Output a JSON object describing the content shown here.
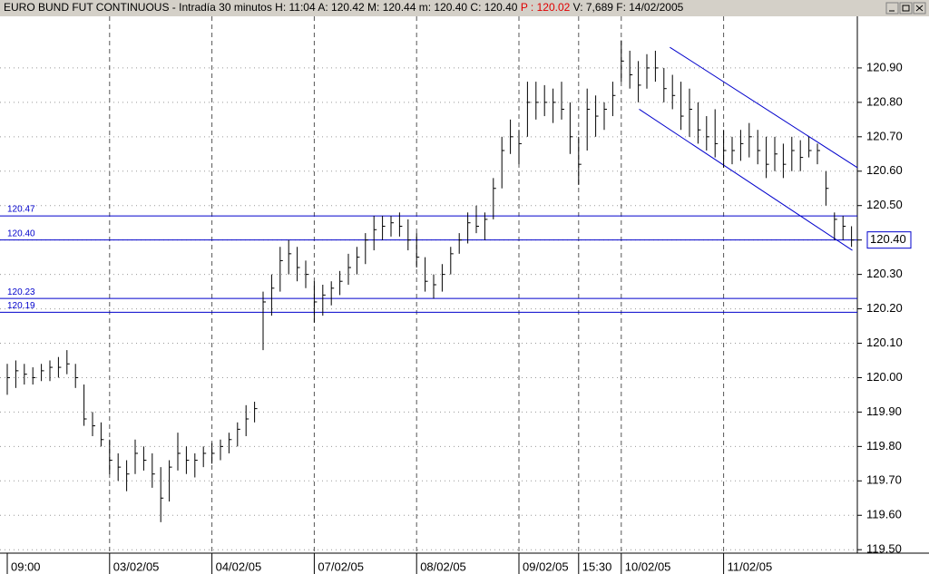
{
  "header": {
    "parts": [
      "EURO BUND FUT CONTINUOUS - Intradía 30 minutos  H: 11:04  A: 120.42  M: 120.44  m: 120.40  C: 120.40",
      "P : 120.02",
      "V: 7,689  F: 14/02/2005"
    ]
  },
  "chart_data": {
    "type": "ohlc",
    "categories": [
      "09:00",
      null,
      null,
      null,
      null,
      null,
      null,
      null,
      null,
      null,
      null,
      null,
      "03/02/05",
      null,
      null,
      null,
      null,
      null,
      null,
      null,
      null,
      null,
      null,
      null,
      "04/02/05",
      null,
      null,
      null,
      null,
      null,
      null,
      null,
      null,
      null,
      null,
      null,
      "07/02/05",
      null,
      null,
      null,
      null,
      null,
      null,
      null,
      null,
      null,
      null,
      null,
      "08/02/05",
      null,
      null,
      null,
      null,
      null,
      null,
      null,
      null,
      null,
      null,
      null,
      "09/02/05",
      null,
      null,
      null,
      null,
      null,
      null,
      "15:30",
      null,
      null,
      null,
      null,
      "10/02/05",
      null,
      null,
      null,
      null,
      null,
      null,
      null,
      null,
      null,
      null,
      null,
      "11/02/05",
      null,
      null,
      null,
      null,
      null,
      null,
      null,
      null,
      null,
      null,
      null,
      null,
      null,
      null,
      null
    ],
    "high": [
      120.04,
      120.05,
      120.04,
      120.03,
      120.04,
      120.05,
      120.06,
      120.08,
      120.04,
      119.98,
      119.9,
      119.87,
      119.82,
      119.78,
      119.76,
      119.82,
      119.8,
      119.78,
      119.74,
      119.76,
      119.84,
      119.8,
      119.78,
      119.8,
      119.81,
      119.82,
      119.84,
      119.87,
      119.92,
      119.93,
      120.25,
      120.3,
      120.38,
      120.4,
      120.38,
      120.34,
      120.28,
      120.27,
      120.28,
      120.31,
      120.36,
      120.38,
      120.42,
      120.47,
      120.47,
      120.47,
      120.48,
      120.46,
      120.42,
      120.35,
      120.3,
      120.33,
      120.38,
      120.42,
      120.48,
      120.5,
      120.48,
      120.58,
      120.7,
      120.75,
      120.72,
      120.86,
      120.86,
      120.85,
      120.84,
      120.86,
      120.8,
      120.7,
      120.84,
      120.82,
      120.8,
      120.86,
      120.98,
      120.95,
      120.92,
      120.94,
      120.95,
      120.9,
      120.88,
      120.86,
      120.84,
      120.8,
      120.76,
      120.78,
      120.72,
      120.7,
      120.72,
      120.74,
      120.72,
      120.7,
      120.7,
      120.68,
      120.7,
      120.69,
      120.7,
      120.68,
      120.6,
      120.48,
      120.47,
      120.44
    ],
    "low": [
      119.95,
      119.97,
      119.98,
      119.98,
      119.99,
      119.99,
      120.0,
      120.01,
      119.97,
      119.86,
      119.83,
      119.8,
      119.72,
      119.7,
      119.67,
      119.72,
      119.73,
      119.68,
      119.58,
      119.64,
      119.73,
      119.72,
      119.71,
      119.74,
      119.75,
      119.76,
      119.78,
      119.8,
      119.83,
      119.87,
      120.08,
      120.18,
      120.25,
      120.3,
      120.28,
      120.26,
      120.16,
      120.18,
      120.21,
      120.24,
      120.27,
      120.3,
      120.33,
      120.37,
      120.4,
      120.41,
      120.41,
      120.37,
      120.32,
      120.25,
      120.23,
      120.25,
      120.3,
      120.36,
      120.39,
      120.42,
      120.4,
      120.46,
      120.55,
      120.65,
      120.62,
      120.7,
      120.75,
      120.76,
      120.74,
      120.75,
      120.65,
      120.56,
      120.66,
      120.7,
      120.72,
      120.76,
      120.86,
      120.84,
      120.8,
      120.84,
      120.86,
      120.8,
      120.78,
      120.72,
      120.7,
      120.68,
      120.66,
      120.64,
      120.61,
      120.62,
      120.63,
      120.64,
      120.62,
      120.58,
      120.6,
      120.58,
      120.6,
      120.6,
      120.64,
      120.62,
      120.5,
      120.4,
      120.4,
      120.38
    ],
    "close": [
      120.0,
      120.02,
      120.01,
      120.0,
      120.02,
      120.03,
      120.03,
      120.04,
      120.0,
      119.88,
      119.86,
      119.82,
      119.76,
      119.74,
      119.72,
      119.78,
      119.76,
      119.72,
      119.65,
      119.74,
      119.78,
      119.76,
      119.76,
      119.78,
      119.78,
      119.8,
      119.82,
      119.85,
      119.88,
      119.91,
      120.22,
      120.26,
      120.34,
      120.36,
      120.32,
      120.3,
      120.22,
      120.24,
      120.26,
      120.28,
      120.32,
      120.35,
      120.4,
      120.43,
      120.44,
      120.45,
      120.44,
      120.4,
      120.35,
      120.28,
      120.27,
      120.3,
      120.36,
      120.4,
      120.45,
      120.44,
      120.46,
      120.55,
      120.66,
      120.7,
      120.68,
      120.8,
      120.8,
      120.8,
      120.8,
      120.78,
      120.7,
      120.62,
      120.78,
      120.76,
      120.78,
      120.82,
      120.92,
      120.88,
      120.85,
      120.9,
      120.9,
      120.84,
      120.82,
      120.76,
      120.78,
      120.72,
      120.7,
      120.68,
      120.66,
      120.66,
      120.68,
      120.7,
      120.66,
      120.62,
      120.65,
      120.62,
      120.66,
      120.64,
      120.66,
      120.66,
      120.55,
      120.46,
      120.44,
      120.4
    ],
    "color": "#000000",
    "ylim": [
      119.49,
      121.05
    ],
    "yticks": [
      {
        "value": 119.5,
        "label": "119.50"
      },
      {
        "value": 119.6,
        "label": "119.60"
      },
      {
        "value": 119.7,
        "label": "119.70"
      },
      {
        "value": 119.8,
        "label": "119.80"
      },
      {
        "value": 119.9,
        "label": "119.90"
      },
      {
        "value": 120.0,
        "label": "120.00"
      },
      {
        "value": 120.1,
        "label": "120.10"
      },
      {
        "value": 120.2,
        "label": "120.20"
      },
      {
        "value": 120.3,
        "label": "120.30"
      },
      {
        "value": 120.4,
        "label": "120.40"
      },
      {
        "value": 120.5,
        "label": "120.50"
      },
      {
        "value": 120.6,
        "label": "120.60"
      },
      {
        "value": 120.7,
        "label": "120.70"
      },
      {
        "value": 120.8,
        "label": "120.80"
      },
      {
        "value": 120.9,
        "label": "120.90"
      }
    ],
    "levels": [
      {
        "value": 120.47,
        "label": "120.47"
      },
      {
        "value": 120.4,
        "label": "120.40"
      },
      {
        "value": 120.23,
        "label": "120.23"
      },
      {
        "value": 120.19,
        "label": "120.19"
      }
    ],
    "last_price": {
      "value": 120.4,
      "label": "120.40"
    },
    "trendlines": [
      {
        "x": [
          77.7,
          99.7
        ],
        "y": [
          120.96,
          120.61
        ]
      },
      {
        "x": [
          74.1,
          99.1
        ],
        "y": [
          120.78,
          120.37
        ]
      }
    ],
    "line_color": "#0000cc",
    "grid": true
  }
}
